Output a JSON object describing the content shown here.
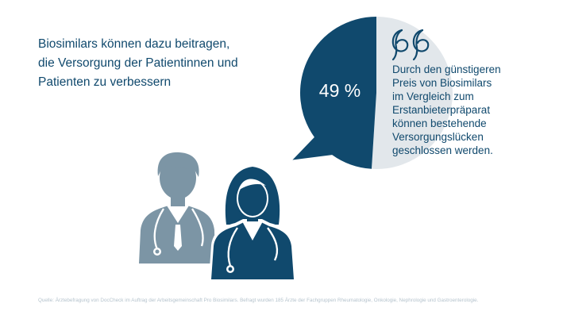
{
  "headline": {
    "lines": [
      "Biosimilars können dazu beitragen,",
      "die Versorgung der Patientinnen und",
      "Patienten zu verbessern"
    ]
  },
  "chart_data": {
    "type": "pie",
    "categories": [
      "",
      ""
    ],
    "values": [
      49,
      51
    ],
    "data_label": "49 %",
    "title": "",
    "colors": [
      "#10496d",
      "#e2e7eb"
    ]
  },
  "quote": {
    "icon": "quotation-mark-icon",
    "lines": [
      "Durch den günstigeren",
      "Preis von Biosimilars",
      "im Vergleich zum",
      "Erstanbieterpräparat",
      "können bestehende",
      "Versorgungslücken",
      "geschlossen werden."
    ]
  },
  "illustration": {
    "male_doctor_color": "#7c95a5",
    "female_doctor_color": "#10496d"
  },
  "source": "Quelle: Ärztebefragung von DocCheck im Auftrag der Arbeitsgemeinschaft Pro Biosimilars. Befragt wurden 185 Ärzte der Fachgruppen Rheumatologie, Onkologie, Nephrologie und Gastroenterologie."
}
